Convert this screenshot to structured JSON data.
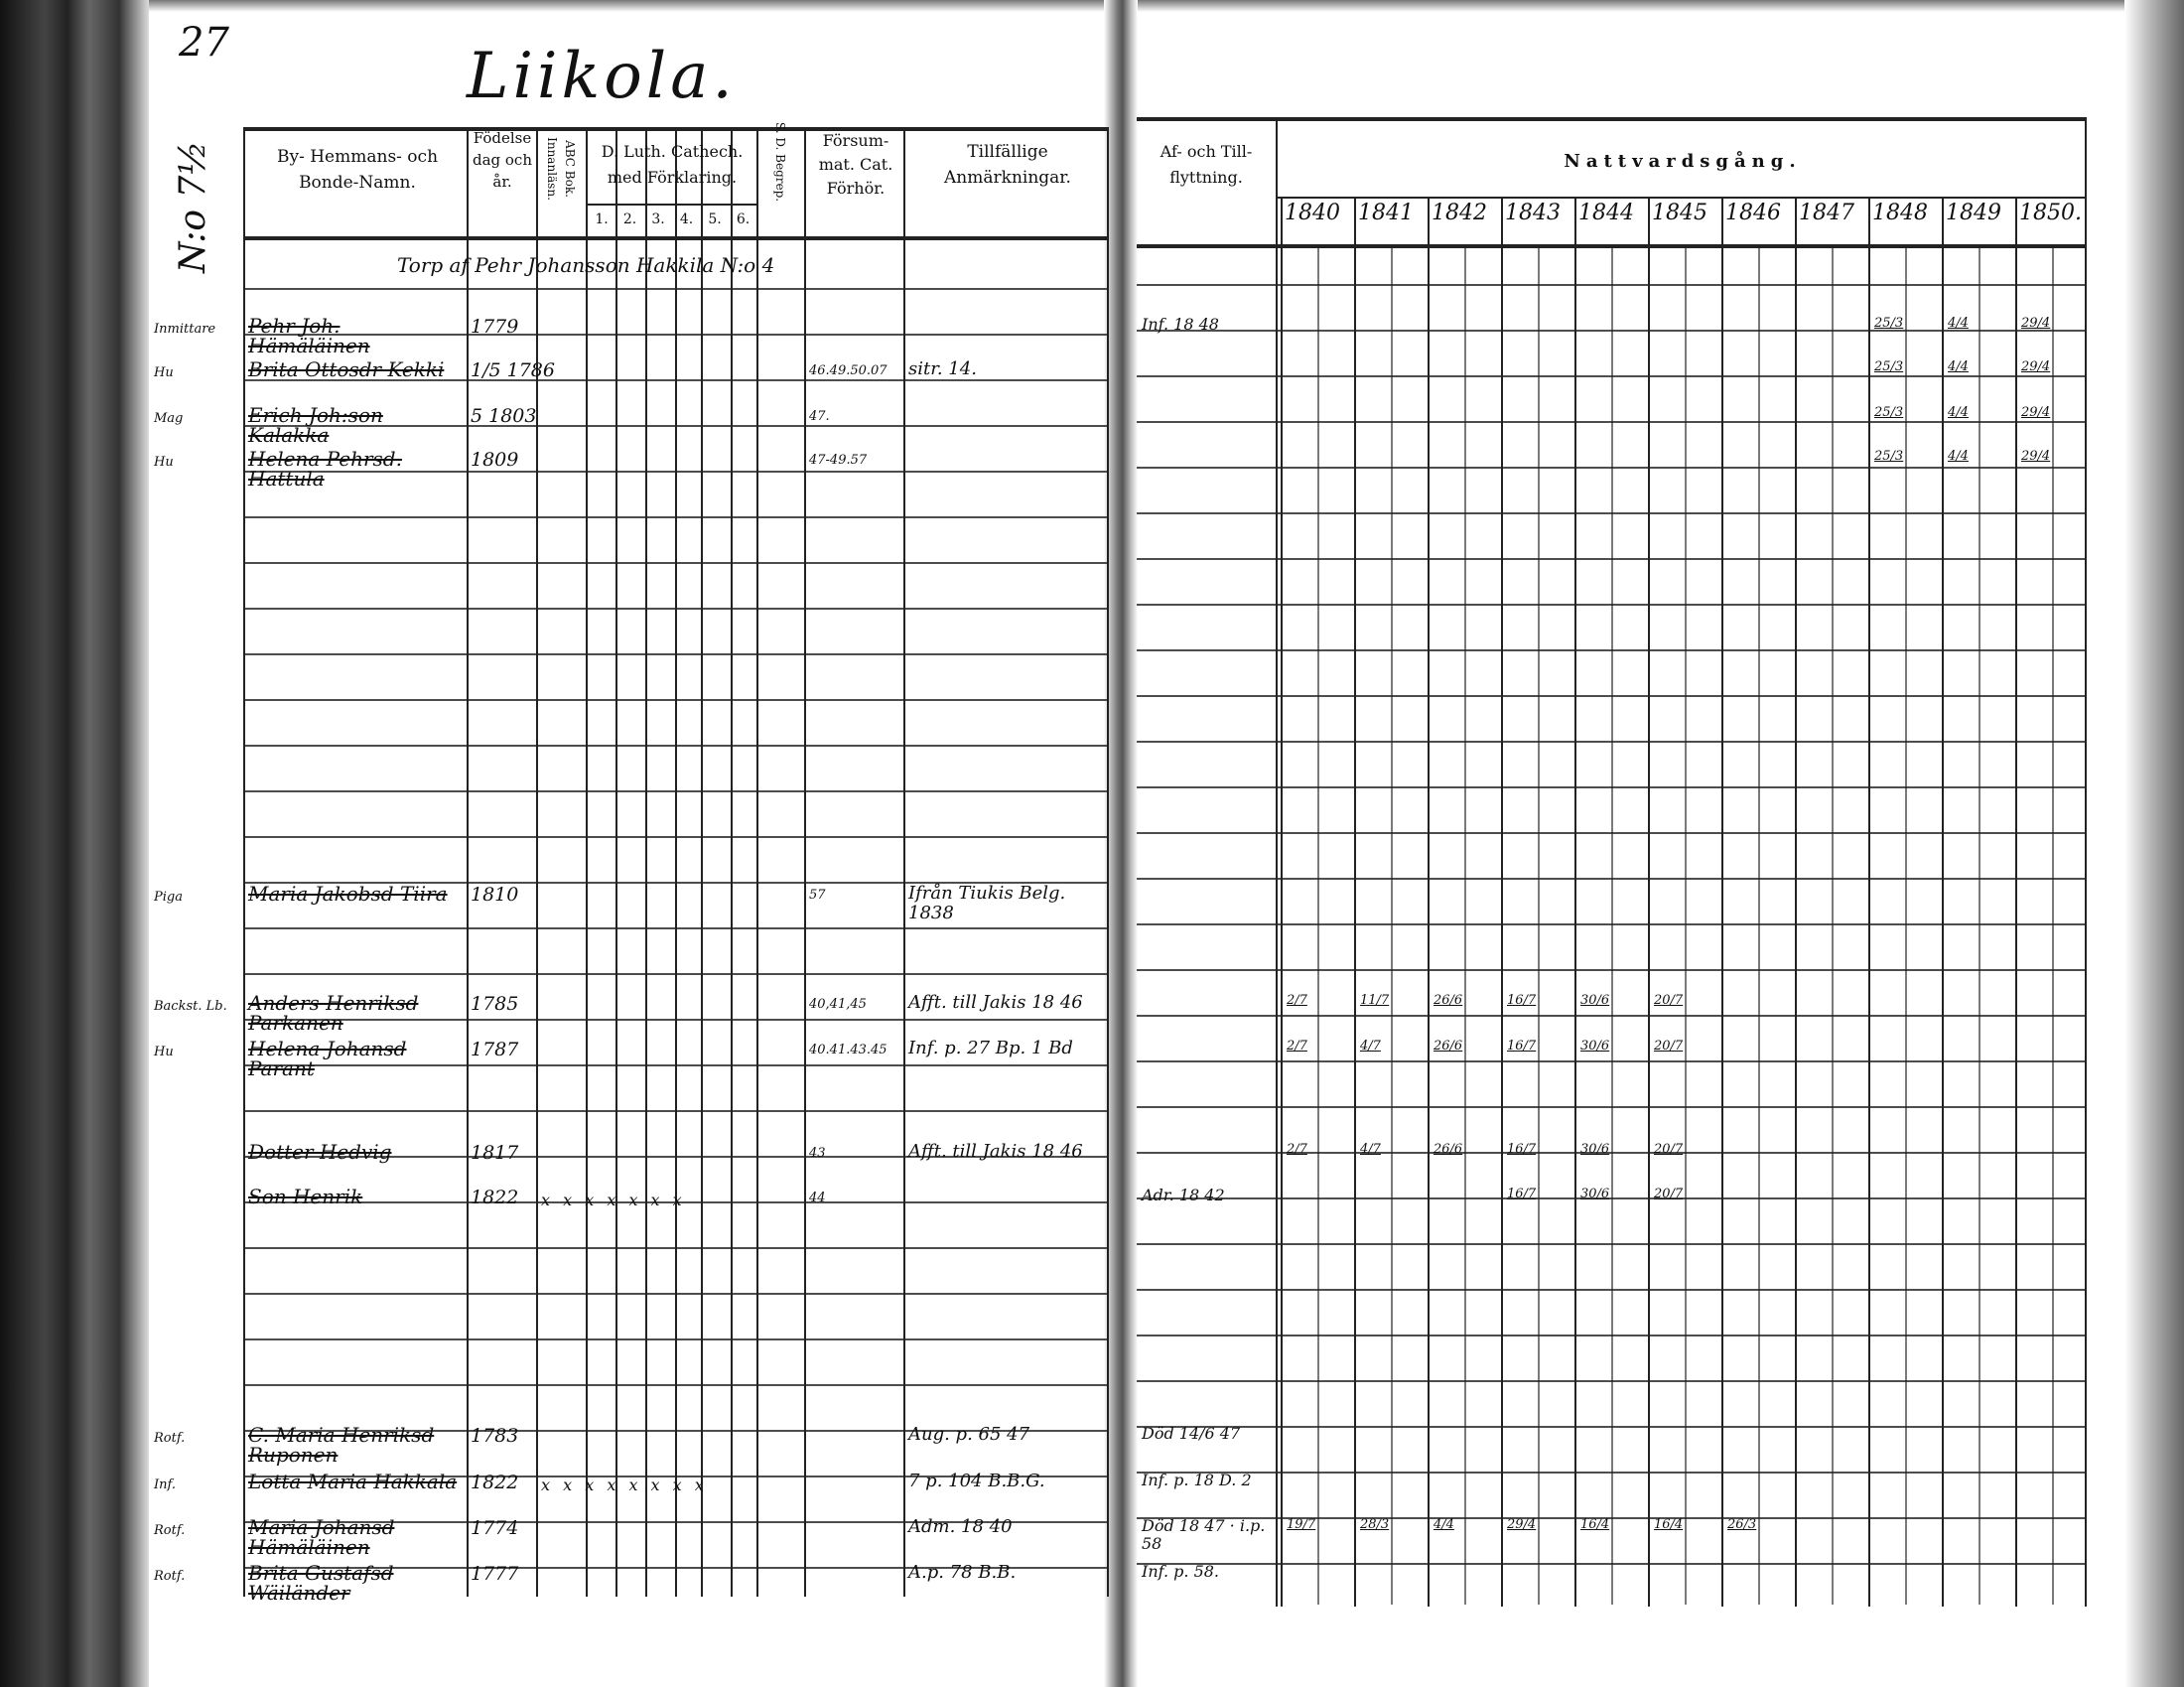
{
  "page_number": "27",
  "village_title": "Liikola.",
  "household_number": "N:o 7½",
  "headers": {
    "name": "By- Hemmans- och Bonde-Namn.",
    "birth": "Födelse dag och år.",
    "abc": "ABC Bok. Innanläsn.",
    "catechism": "D. Luth. Cathech. med Förklaring.",
    "catechism_sub": [
      "1.",
      "2.",
      "3.",
      "4.",
      "5.",
      "6."
    ],
    "sd": "S. D. Begrep.",
    "forsum": "Försum-mat. Cat. Förhör.",
    "notes": "Tillfällige Anmärkningar.",
    "moving": "Af- och Till-flyttning.",
    "communion": "Nattvardsgång."
  },
  "years": [
    "1840",
    "1841",
    "1842",
    "1843",
    "1844",
    "1845",
    "1846",
    "1847",
    "1848",
    "1849",
    "1850."
  ],
  "household_line": "Torp af Pehr Johansson Hakkila N:o 4",
  "entries": [
    {
      "role": "Inmittare",
      "name": "Pehr Joh. Hämäläinen",
      "birth": "1779",
      "forsum": "",
      "note": "",
      "moving": "Inf. 18 48",
      "communion": [
        "25/3",
        "4/4",
        "29/4"
      ]
    },
    {
      "role": "Hu",
      "name": "Brita Ottosdr Kekki",
      "birth": "1/5 1786",
      "forsum": "46.49.50.07",
      "note": "sitr. 14.",
      "moving": "",
      "communion": [
        "25/3",
        "4/4",
        "29/4"
      ]
    },
    {
      "role": "Mag",
      "name": "Erich Joh:son Kalakka",
      "birth": "5 1803",
      "forsum": "47.",
      "note": "",
      "moving": "",
      "communion": [
        "25/3",
        "4/4",
        "29/4"
      ]
    },
    {
      "role": "Hu",
      "name": "Helena Pehrsd. Hattula",
      "birth": "1809",
      "forsum": "47-49.57",
      "note": "",
      "moving": "",
      "communion": [
        "25/3",
        "4/4",
        "29/4"
      ]
    },
    {
      "role": "Piga",
      "name": "Maria Jakobsd Tiira",
      "birth": "1810",
      "forsum": "57",
      "note": "Ifrån Tiukis Belg. 1838",
      "moving": "",
      "communion": []
    },
    {
      "role": "Backst. Lb.",
      "name": "Anders Henriksd Parkanen",
      "birth": "1785",
      "forsum": "40,41,45",
      "note": "Afft. till Jakis 18 46",
      "moving": "",
      "communion": [
        "2/7",
        "11/7",
        "26/6",
        "16/7",
        "30/6",
        "20/7"
      ]
    },
    {
      "role": "Hu",
      "name": "Helena Johansd Parant",
      "birth": "1787",
      "forsum": "40.41.43.45",
      "note": "Inf. p. 27 Bp. 1 Bd",
      "moving": "",
      "communion": [
        "2/7",
        "4/7",
        "26/6",
        "16/7",
        "30/6",
        "20/7"
      ]
    },
    {
      "role": "",
      "name": "Dotter Hedvig",
      "birth": "1817",
      "forsum": "43",
      "note": "Afft. till Jakis 18 46",
      "moving": "",
      "communion": [
        "2/7",
        "4/7",
        "26/6",
        "16/7",
        "30/6",
        "20/7"
      ]
    },
    {
      "role": "",
      "name": "Son Henrik",
      "birth": "1822",
      "forsum": "44",
      "note": "",
      "marks": "x x x x x x x",
      "moving": "Adr. 18 42",
      "communion": [
        "",
        "",
        "",
        "16/7",
        "30/6",
        "20/7"
      ]
    },
    {
      "role": "Rotf.",
      "name": "C. Maria Henriksd Ruponen",
      "birth": "1783",
      "forsum": "",
      "note": "Aug. p. 65 47",
      "moving": "Död 14/6 47",
      "communion": []
    },
    {
      "role": "Inf.",
      "name": "Lotta Maria Hakkala",
      "birth": "1822",
      "forsum": "",
      "note": "7 p. 104 B.B.G.",
      "marks": "x x x x x x x x",
      "moving": "Inf. p. 18 D. 2",
      "communion": []
    },
    {
      "role": "Rotf.",
      "name": "Maria Johansd Hämäläinen",
      "birth": "1774",
      "forsum": "",
      "note": "Adm. 18 40",
      "moving": "Död 18 47 · i.p. 58",
      "communion": [
        "19/7",
        "28/3",
        "4/4",
        "29/4",
        "16/4",
        "16/4",
        "26/3"
      ]
    },
    {
      "role": "Rotf.",
      "name": "Brita Gustafsd Wäiländer",
      "birth": "1777",
      "forsum": "",
      "note": "A.p. 78 B.B.",
      "moving": "Inf. p. 58.",
      "communion": []
    }
  ]
}
